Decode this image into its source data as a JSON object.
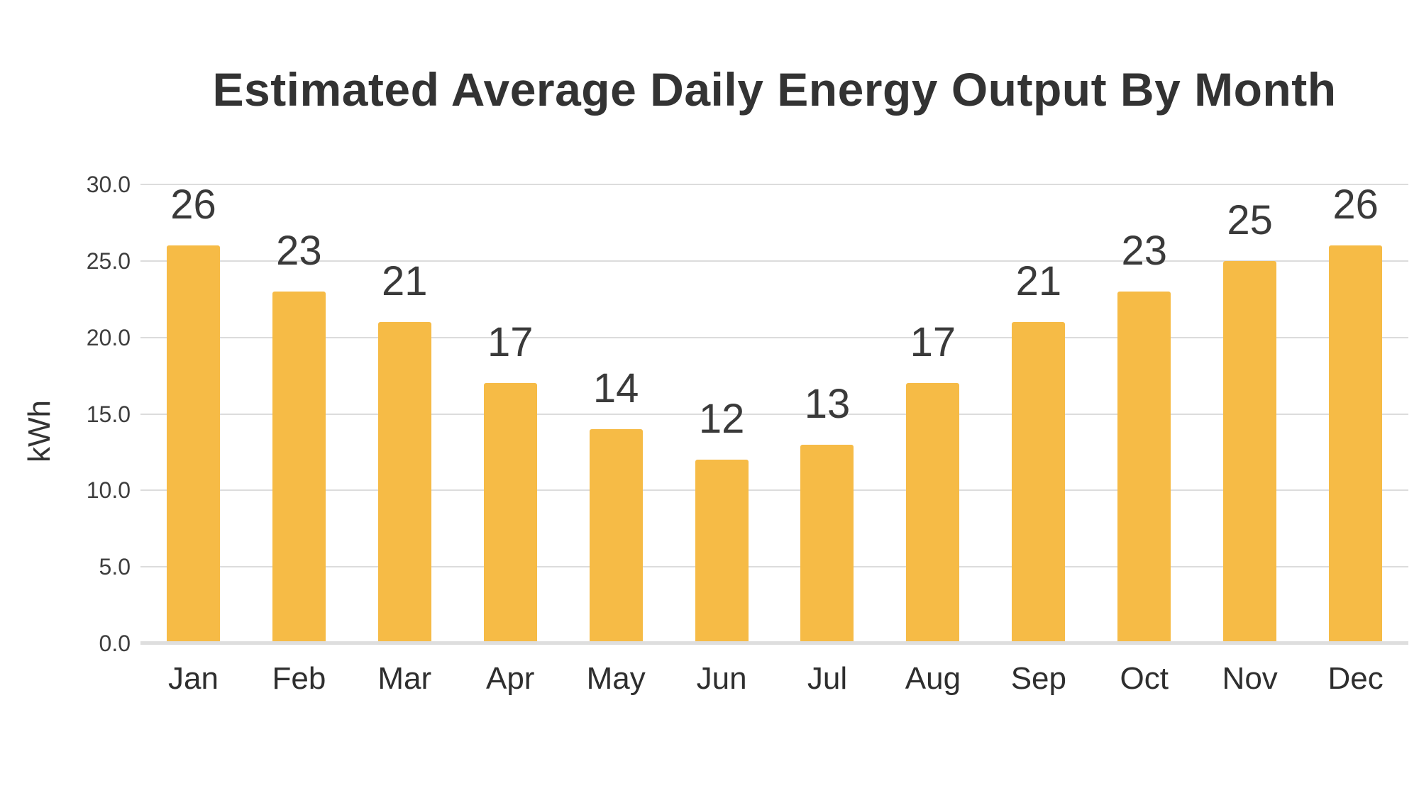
{
  "page": {
    "background_color": "#ffffff"
  },
  "chart_data": {
    "type": "bar",
    "title": "Estimated Average Daily Energy Output By Month",
    "xlabel": "",
    "ylabel": "kWh",
    "categories": [
      "Jan",
      "Feb",
      "Mar",
      "Apr",
      "May",
      "Jun",
      "Jul",
      "Aug",
      "Sep",
      "Oct",
      "Nov",
      "Dec"
    ],
    "values": [
      26,
      23,
      21,
      17,
      14,
      12,
      13,
      17,
      21,
      23,
      25,
      26
    ],
    "value_labels": [
      "26",
      "23",
      "21",
      "17",
      "14",
      "12",
      "13",
      "17",
      "21",
      "23",
      "25",
      "26"
    ],
    "ylim": [
      0,
      30
    ],
    "ytick_step": 5,
    "ytick_labels": [
      "0.0",
      "5.0",
      "10.0",
      "15.0",
      "20.0",
      "25.0",
      "30.0"
    ],
    "grid": "horizontal",
    "legend": "none",
    "bar_color": "#F6BB46",
    "gridline_color": "#DCDCDC",
    "baseline_color": "#DEDEDE",
    "title_color": "#333333",
    "value_label_color": "#3A3A3A",
    "tick_label_color": "#3E3E3E",
    "month_label_color": "#2E2E2E"
  }
}
